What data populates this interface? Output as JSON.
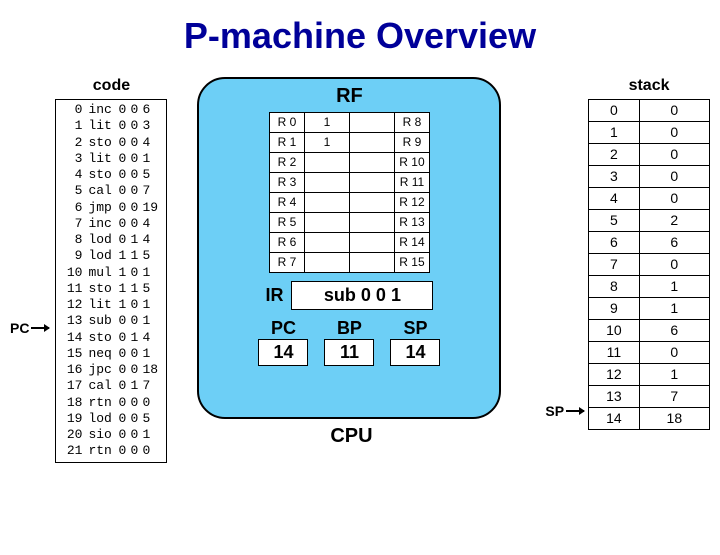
{
  "title": "P-machine Overview",
  "labels": {
    "code": "code",
    "stack": "stack",
    "pc_pointer": "PC",
    "sp_pointer": "SP",
    "rf": "RF",
    "ir": "IR",
    "pc": "PC",
    "bp": "BP",
    "sp": "SP",
    "cpu": "CPU"
  },
  "code": {
    "rows": [
      {
        "i": "0",
        "op": "inc",
        "a": "0",
        "b": "0",
        "c": "6"
      },
      {
        "i": "1",
        "op": "lit",
        "a": "0",
        "b": "0",
        "c": "3"
      },
      {
        "i": "2",
        "op": "sto",
        "a": "0",
        "b": "0",
        "c": "4"
      },
      {
        "i": "3",
        "op": "lit",
        "a": "0",
        "b": "0",
        "c": "1"
      },
      {
        "i": "4",
        "op": "sto",
        "a": "0",
        "b": "0",
        "c": "5"
      },
      {
        "i": "5",
        "op": "cal",
        "a": "0",
        "b": "0",
        "c": "7"
      },
      {
        "i": "6",
        "op": "jmp",
        "a": "0",
        "b": "0",
        "c": "19"
      },
      {
        "i": "7",
        "op": "inc",
        "a": "0",
        "b": "0",
        "c": "4"
      },
      {
        "i": "8",
        "op": "lod",
        "a": "0",
        "b": "1",
        "c": "4"
      },
      {
        "i": "9",
        "op": "lod",
        "a": "1",
        "b": "1",
        "c": "5"
      },
      {
        "i": "10",
        "op": "mul",
        "a": "1",
        "b": "0",
        "c": "1"
      },
      {
        "i": "11",
        "op": "sto",
        "a": "1",
        "b": "1",
        "c": "5"
      },
      {
        "i": "12",
        "op": "lit",
        "a": "1",
        "b": "0",
        "c": "1"
      },
      {
        "i": "13",
        "op": "sub",
        "a": "0",
        "b": "0",
        "c": "1"
      },
      {
        "i": "14",
        "op": "sto",
        "a": "0",
        "b": "1",
        "c": "4"
      },
      {
        "i": "15",
        "op": "neq",
        "a": "0",
        "b": "0",
        "c": "1"
      },
      {
        "i": "16",
        "op": "jpc",
        "a": "0",
        "b": "0",
        "c": "18"
      },
      {
        "i": "17",
        "op": "cal",
        "a": "0",
        "b": "1",
        "c": "7"
      },
      {
        "i": "18",
        "op": "rtn",
        "a": "0",
        "b": "0",
        "c": "0"
      },
      {
        "i": "19",
        "op": "lod",
        "a": "0",
        "b": "0",
        "c": "5"
      },
      {
        "i": "20",
        "op": "sio",
        "a": "0",
        "b": "0",
        "c": "1"
      },
      {
        "i": "21",
        "op": "rtn",
        "a": "0",
        "b": "0",
        "c": "0"
      }
    ],
    "pc_row": 14
  },
  "rf": {
    "left": [
      {
        "name": "R 0",
        "val": "1"
      },
      {
        "name": "R 1",
        "val": "1"
      },
      {
        "name": "R 2",
        "val": ""
      },
      {
        "name": "R 3",
        "val": ""
      },
      {
        "name": "R 4",
        "val": ""
      },
      {
        "name": "R 5",
        "val": ""
      },
      {
        "name": "R 6",
        "val": ""
      },
      {
        "name": "R 7",
        "val": ""
      }
    ],
    "right": [
      {
        "name": "R 8",
        "val": ""
      },
      {
        "name": "R 9",
        "val": ""
      },
      {
        "name": "R 10",
        "val": ""
      },
      {
        "name": "R 11",
        "val": ""
      },
      {
        "name": "R 12",
        "val": ""
      },
      {
        "name": "R 13",
        "val": ""
      },
      {
        "name": "R 14",
        "val": ""
      },
      {
        "name": "R 15",
        "val": ""
      }
    ]
  },
  "cpu": {
    "ir": "sub 0 0 1",
    "pc": "14",
    "bp": "11",
    "sp": "14"
  },
  "stack": {
    "rows": [
      {
        "i": "0",
        "v": "0"
      },
      {
        "i": "1",
        "v": "0"
      },
      {
        "i": "2",
        "v": "0"
      },
      {
        "i": "3",
        "v": "0"
      },
      {
        "i": "4",
        "v": "0"
      },
      {
        "i": "5",
        "v": "2"
      },
      {
        "i": "6",
        "v": "6"
      },
      {
        "i": "7",
        "v": "0"
      },
      {
        "i": "8",
        "v": "1"
      },
      {
        "i": "9",
        "v": "1"
      },
      {
        "i": "10",
        "v": "6"
      },
      {
        "i": "11",
        "v": "0"
      },
      {
        "i": "12",
        "v": "1"
      },
      {
        "i": "13",
        "v": "7"
      },
      {
        "i": "14",
        "v": "18"
      }
    ],
    "sp_row": 14
  },
  "colors": {
    "title": "#000099",
    "cpu_bg": "#6dcff6",
    "border": "#000000",
    "page_bg": "#ffffff"
  }
}
